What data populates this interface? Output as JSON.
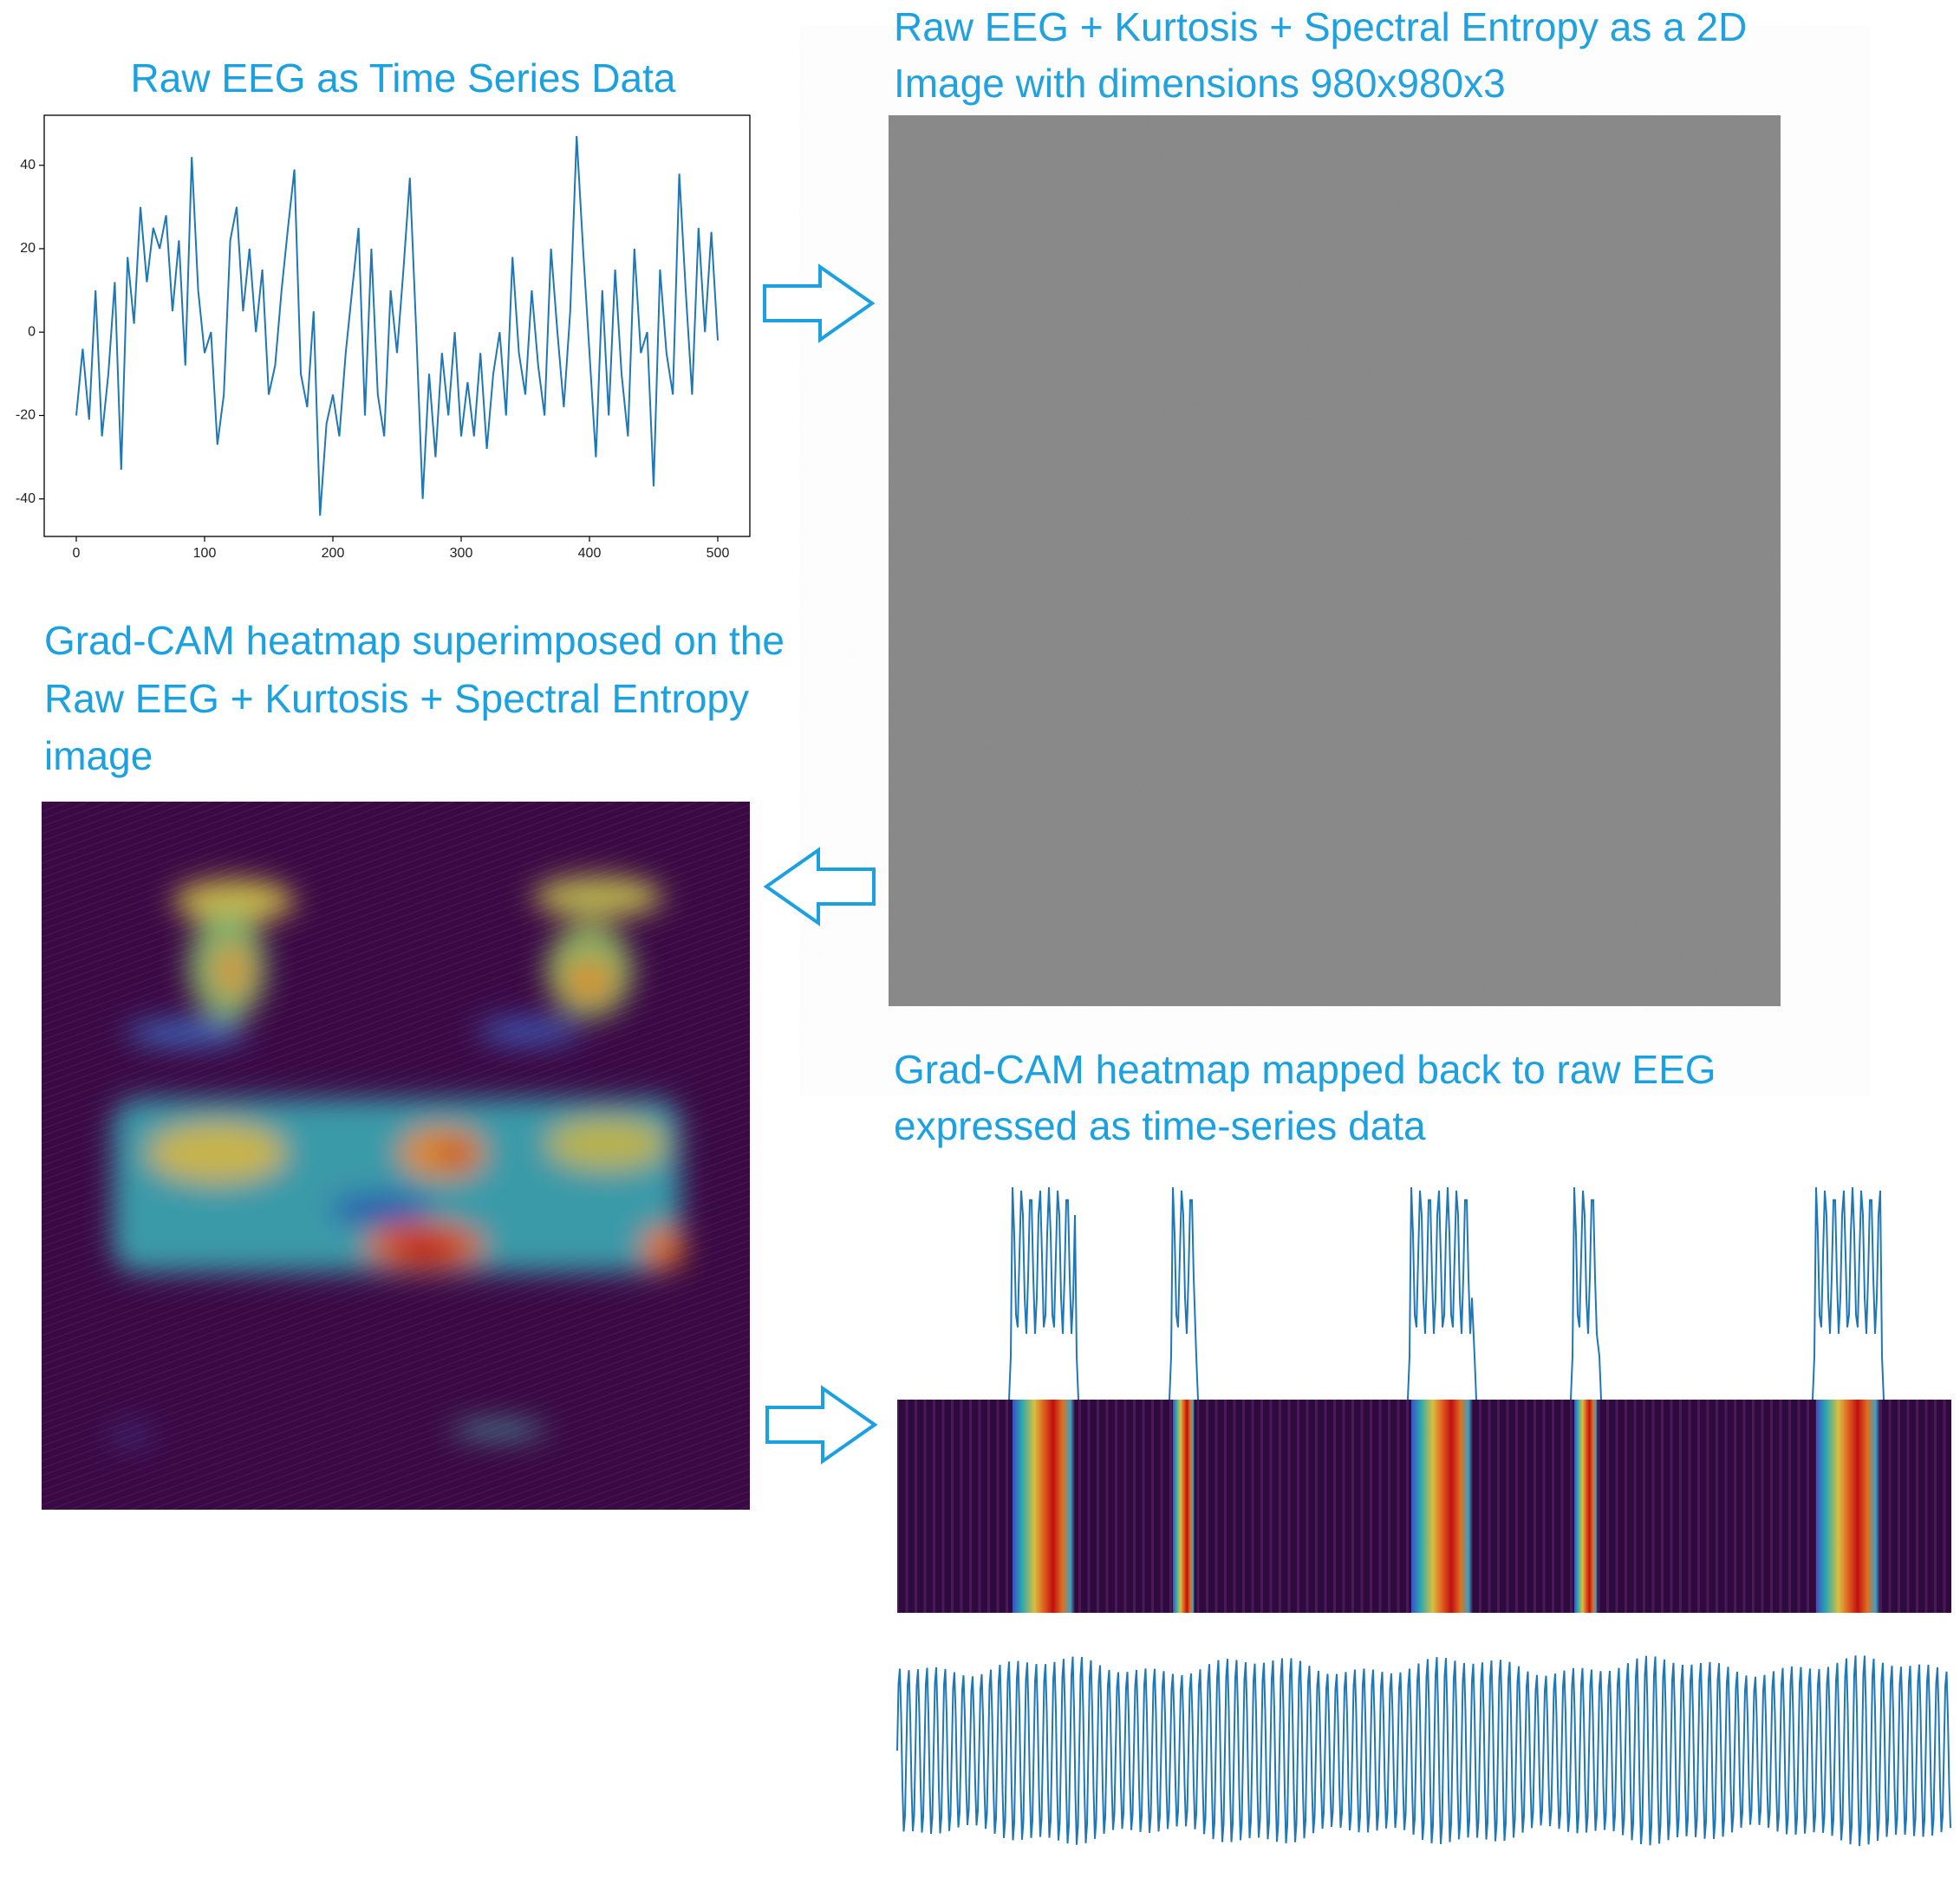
{
  "image_2d_title": [
    "Raw EEG + Kurtosis + Spectral Entropy as a 2D",
    "Image with dimensions 980x980x3"
  ],
  "gradcam_image_title": [
    "Grad-CAM heatmap superimposed on the",
    "Raw EEG + Kurtosis + Spectral Entropy",
    "image"
  ],
  "gradcam_series_title": [
    "Grad-CAM heatmap mapped back to raw EEG",
    "expressed as time-series data"
  ],
  "chart_data": {
    "type": "line",
    "title": "Raw EEG as Time Series Data",
    "color": "#1f77b4",
    "x": [
      0,
      5,
      10,
      15,
      20,
      25,
      30,
      35,
      40,
      45,
      50,
      55,
      60,
      65,
      70,
      75,
      80,
      85,
      90,
      95,
      100,
      105,
      110,
      115,
      120,
      125,
      130,
      135,
      140,
      145,
      150,
      155,
      160,
      165,
      170,
      175,
      180,
      185,
      190,
      195,
      200,
      205,
      210,
      215,
      220,
      225,
      230,
      235,
      240,
      245,
      250,
      255,
      260,
      265,
      270,
      275,
      280,
      285,
      290,
      295,
      300,
      305,
      310,
      315,
      320,
      325,
      330,
      335,
      340,
      345,
      350,
      355,
      360,
      365,
      370,
      375,
      380,
      385,
      390,
      395,
      400,
      405,
      410,
      415,
      420,
      425,
      430,
      435,
      440,
      445,
      450,
      455,
      460,
      465,
      470,
      475,
      480,
      485,
      490,
      495,
      500
    ],
    "values": [
      -20,
      -4,
      -21,
      10,
      -25,
      -10,
      12,
      -33,
      18,
      2,
      30,
      12,
      25,
      20,
      28,
      5,
      22,
      -8,
      42,
      10,
      -5,
      0,
      -27,
      -15,
      22,
      30,
      5,
      20,
      0,
      15,
      -15,
      -8,
      10,
      25,
      39,
      -10,
      -18,
      5,
      -44,
      -22,
      -15,
      -25,
      -5,
      10,
      25,
      -20,
      20,
      -15,
      -25,
      10,
      -5,
      15,
      37,
      0,
      -40,
      -10,
      -30,
      -5,
      -20,
      0,
      -25,
      -12,
      -25,
      -5,
      -28,
      -10,
      0,
      -20,
      18,
      -5,
      -15,
      10,
      -8,
      -20,
      20,
      0,
      -18,
      5,
      47,
      20,
      -5,
      -30,
      10,
      -20,
      15,
      -10,
      -25,
      20,
      -5,
      0,
      -37,
      15,
      -5,
      -15,
      38,
      10,
      -15,
      25,
      0,
      24,
      -2
    ],
    "xlim": [
      -25,
      525
    ],
    "ylim": [
      -49,
      52
    ],
    "xticks": [
      0,
      100,
      200,
      300,
      400,
      500
    ],
    "yticks": [
      -40,
      -20,
      0,
      20,
      40
    ]
  }
}
